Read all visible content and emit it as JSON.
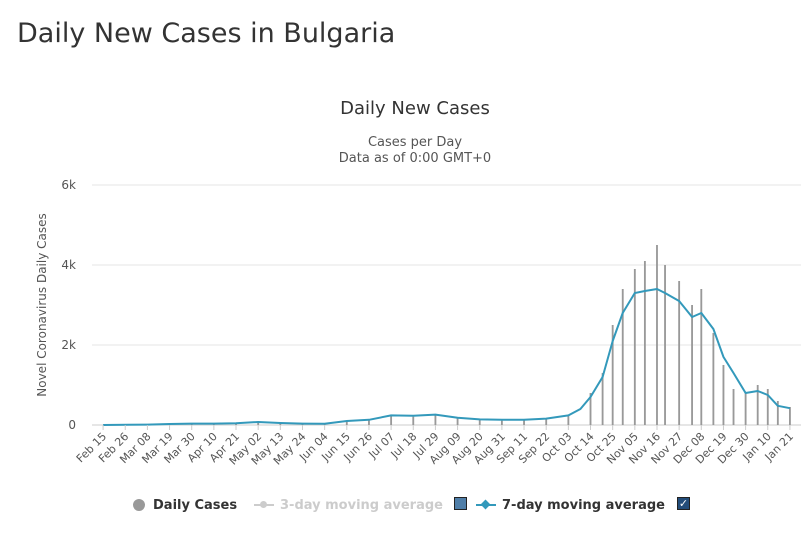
{
  "page": {
    "title": "Daily New Cases in Bulgaria"
  },
  "chart_data": {
    "type": "bar",
    "title": "Daily New Cases",
    "subtitle_line1": "Cases per Day",
    "subtitle_line2": "Data as of 0:00 GMT+0",
    "ylabel": "Novel Coronavirus Daily Cases",
    "ylim": [
      0,
      6000
    ],
    "yticks": [
      {
        "value": 0,
        "label": "0"
      },
      {
        "value": 2000,
        "label": "2k"
      },
      {
        "value": 4000,
        "label": "4k"
      },
      {
        "value": 6000,
        "label": "6k"
      }
    ],
    "xticks": [
      "Feb 15",
      "Feb 26",
      "Mar 08",
      "Mar 19",
      "Mar 30",
      "Apr 10",
      "Apr 21",
      "May 02",
      "May 13",
      "May 24",
      "Jun 04",
      "Jun 15",
      "Jun 26",
      "Jul 07",
      "Jul 18",
      "Jul 29",
      "Aug 09",
      "Aug 20",
      "Aug 31",
      "Sep 11",
      "Sep 22",
      "Oct 03",
      "Oct 14",
      "Oct 25",
      "Nov 05",
      "Nov 16",
      "Nov 27",
      "Dec 08",
      "Dec 19",
      "Dec 30",
      "Jan 10",
      "Jan 21"
    ],
    "grid": true,
    "legend_position": "bottom",
    "bar_color": "#999999",
    "series": [
      {
        "name": "Daily Cases",
        "kind": "bar",
        "points": [
          [
            "Feb 15",
            0
          ],
          [
            "Mar 08",
            10
          ],
          [
            "Mar 19",
            30
          ],
          [
            "Mar 30",
            40
          ],
          [
            "Apr 10",
            30
          ],
          [
            "Apr 21",
            40
          ],
          [
            "May 02",
            80
          ],
          [
            "May 13",
            40
          ],
          [
            "May 24",
            30
          ],
          [
            "Jun 04",
            20
          ],
          [
            "Jun 15",
            110
          ],
          [
            "Jun 26",
            120
          ],
          [
            "Jul 07",
            220
          ],
          [
            "Jul 18",
            210
          ],
          [
            "Jul 29",
            250
          ],
          [
            "Aug 09",
            180
          ],
          [
            "Aug 20",
            140
          ],
          [
            "Aug 31",
            110
          ],
          [
            "Sep 11",
            120
          ],
          [
            "Sep 22",
            150
          ],
          [
            "Oct 03",
            250
          ],
          [
            "Oct 14",
            800
          ],
          [
            "Oct 20",
            1300
          ],
          [
            "Oct 25",
            2500
          ],
          [
            "Oct 30",
            3400
          ],
          [
            "Nov 05",
            3900
          ],
          [
            "Nov 10",
            4100
          ],
          [
            "Nov 16",
            4500
          ],
          [
            "Nov 20",
            4000
          ],
          [
            "Nov 27",
            3600
          ],
          [
            "Dec 03",
            3000
          ],
          [
            "Dec 08",
            3400
          ],
          [
            "Dec 14",
            2300
          ],
          [
            "Dec 19",
            1500
          ],
          [
            "Dec 24",
            900
          ],
          [
            "Dec 30",
            800
          ],
          [
            "Jan 05",
            1000
          ],
          [
            "Jan 10",
            900
          ],
          [
            "Jan 15",
            600
          ],
          [
            "Jan 21",
            450
          ]
        ]
      },
      {
        "name": "3-day moving average",
        "kind": "line",
        "visible": false,
        "color": "#cccccc"
      },
      {
        "name": "7-day moving average",
        "kind": "line",
        "visible": true,
        "color": "#3399bb",
        "points": [
          [
            "Feb 15",
            0
          ],
          [
            "Mar 08",
            10
          ],
          [
            "Mar 19",
            25
          ],
          [
            "Mar 30",
            35
          ],
          [
            "Apr 10",
            35
          ],
          [
            "Apr 21",
            45
          ],
          [
            "May 02",
            75
          ],
          [
            "May 13",
            50
          ],
          [
            "May 24",
            35
          ],
          [
            "Jun 04",
            30
          ],
          [
            "Jun 15",
            100
          ],
          [
            "Jun 26",
            130
          ],
          [
            "Jul 07",
            240
          ],
          [
            "Jul 18",
            230
          ],
          [
            "Jul 29",
            260
          ],
          [
            "Aug 09",
            180
          ],
          [
            "Aug 20",
            140
          ],
          [
            "Aug 31",
            130
          ],
          [
            "Sep 11",
            130
          ],
          [
            "Sep 22",
            160
          ],
          [
            "Oct 03",
            240
          ],
          [
            "Oct 09",
            400
          ],
          [
            "Oct 14",
            700
          ],
          [
            "Oct 20",
            1200
          ],
          [
            "Oct 25",
            2100
          ],
          [
            "Oct 30",
            2800
          ],
          [
            "Nov 05",
            3300
          ],
          [
            "Nov 10",
            3350
          ],
          [
            "Nov 16",
            3400
          ],
          [
            "Nov 20",
            3300
          ],
          [
            "Nov 27",
            3100
          ],
          [
            "Dec 03",
            2700
          ],
          [
            "Dec 08",
            2800
          ],
          [
            "Dec 14",
            2400
          ],
          [
            "Dec 19",
            1700
          ],
          [
            "Dec 24",
            1300
          ],
          [
            "Dec 30",
            800
          ],
          [
            "Jan 05",
            850
          ],
          [
            "Jan 10",
            750
          ],
          [
            "Jan 15",
            480
          ],
          [
            "Jan 21",
            420
          ]
        ]
      }
    ]
  },
  "legend": {
    "items": [
      {
        "label": "Daily Cases",
        "active": true
      },
      {
        "label": "3-day moving average",
        "active": false
      },
      {
        "label": "7-day moving average",
        "active": true
      }
    ],
    "checkboxes": [
      {
        "checked": false
      },
      {
        "checked": true
      }
    ]
  }
}
